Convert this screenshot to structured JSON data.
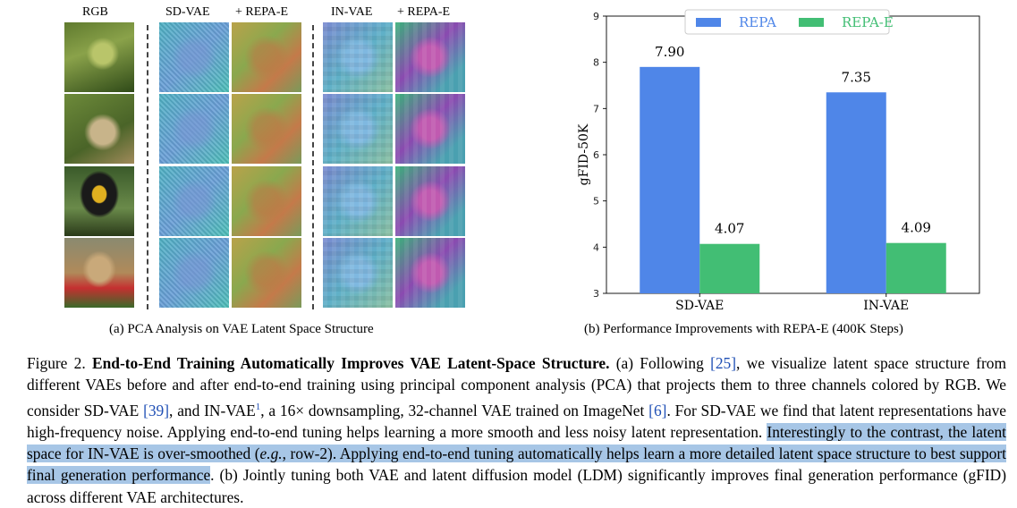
{
  "left_panel": {
    "column_headers": [
      "RGB",
      "SD-VAE",
      "+ REPA-E",
      "IN-VAE",
      "+ REPA-E"
    ],
    "row_subjects": [
      "lizard",
      "butterfly",
      "toucan",
      "kitten"
    ],
    "subcaption": "(a) PCA Analysis on VAE Latent Space Structure"
  },
  "chart_subcaption": "(b) Performance Improvements with REPA-E (400K Steps)",
  "chart_data": {
    "type": "bar",
    "categories": [
      "SD-VAE",
      "IN-VAE"
    ],
    "series": [
      {
        "name": "REPA",
        "values": [
          7.9,
          7.35
        ],
        "color": "#4f86e8"
      },
      {
        "name": "REPA-E",
        "values": [
          4.07,
          4.09
        ],
        "color": "#42be74"
      }
    ],
    "data_labels": [
      [
        "7.90",
        "7.35"
      ],
      [
        "4.07",
        "4.09"
      ]
    ],
    "ylabel": "gFID-50K",
    "xlabel": "",
    "ylim": [
      3,
      9
    ],
    "yticks": [
      "3",
      "4",
      "5",
      "6",
      "7",
      "8",
      "9"
    ],
    "legend_placement": "top-center",
    "grid": false
  },
  "caption": {
    "figure_label": "Figure 2.",
    "title": "End-to-End Training Automatically Improves VAE Latent-Space Structure.",
    "p1": "(a) Following",
    "ref25": "[25]",
    "p2": ", we visualize latent space structure from different VAEs before and after end-to-end training using principal component analysis (PCA) that projects them to three channels colored by RGB. We consider SD-VAE",
    "ref39": "[39]",
    "p3": ", and IN-VAE",
    "footnote": "1",
    "p4": ", a 16× downsampling, 32-channel VAE trained on ImageNet",
    "ref6": "[6]",
    "p5": ". For SD-VAE we find that latent representations have high-frequency noise. Applying end-to-end tuning helps learning a more smooth and less noisy latent representation.",
    "hl1": "Interestingly to the contrast, the latent space for IN-VAE is over-smoothed (",
    "hl_eg": "e.g.",
    "hl2": ", row-2). Applying end-to-end tuning automatically helps learn a more detailed latent space structure to best support final generation performance",
    "p6": ". (b) Jointly tuning both VAE and latent diffusion model (LDM) significantly improves final generation performance (gFID) across different VAE architectures."
  }
}
